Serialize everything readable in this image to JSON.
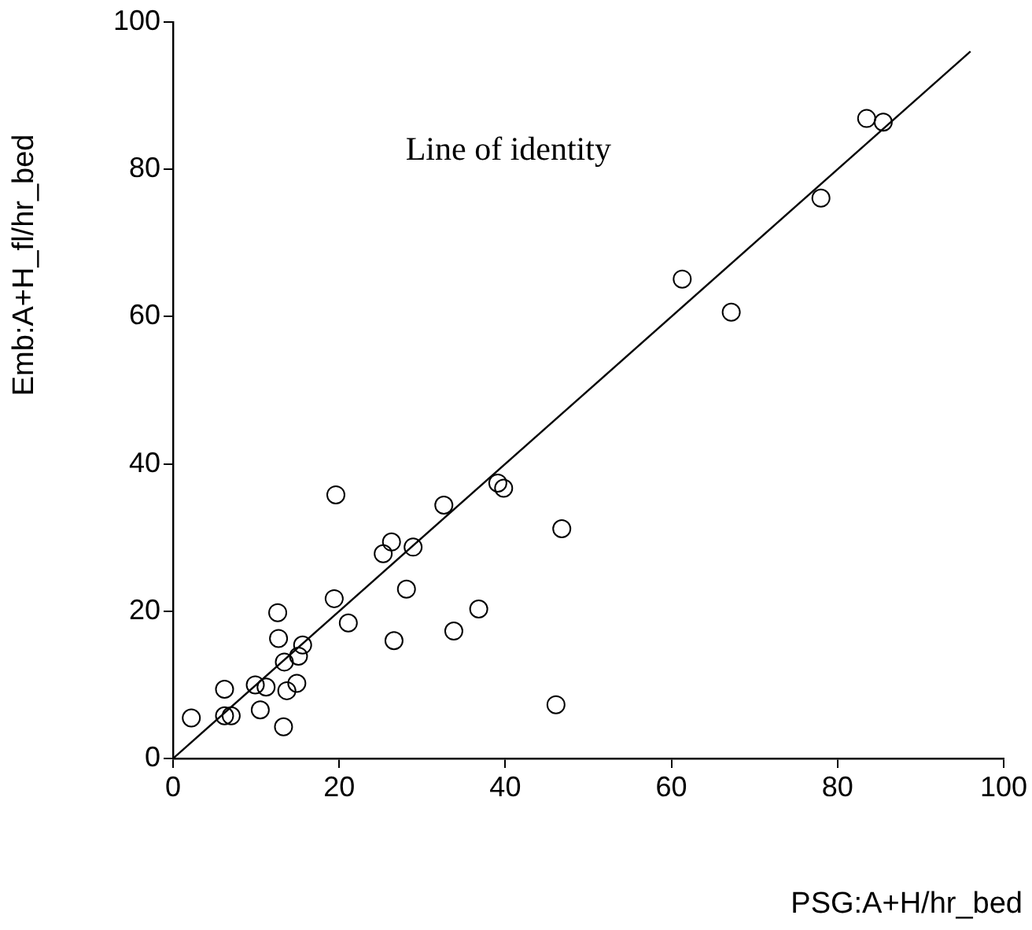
{
  "chart_data": {
    "type": "scatter",
    "xlabel": "PSG:A+H/hr_bed",
    "ylabel": "Emb:A+H_fl/hr_bed",
    "annotations": [
      "Line of identity"
    ],
    "xlim": [
      0,
      100
    ],
    "ylim": [
      0,
      100
    ],
    "xticks": [
      0,
      20,
      40,
      60,
      80,
      100
    ],
    "yticks": [
      0,
      20,
      40,
      60,
      80,
      100
    ],
    "grid": false,
    "legend": false,
    "marker": "circle",
    "series": [
      {
        "type": "scatter",
        "color": "#000000",
        "x": [
          2.2,
          6.2,
          7.0,
          6.2,
          9.9,
          11.2,
          10.5,
          12.6,
          12.7,
          13.4,
          13.3,
          13.7,
          14.9,
          15.1,
          15.6,
          19.6,
          19.4,
          21.1,
          25.3,
          26.3,
          28.9,
          26.6,
          28.1,
          32.6,
          33.8,
          36.8,
          39.1,
          39.8,
          46.8,
          46.1,
          61.3,
          67.2,
          78.0,
          83.5,
          85.5
        ],
        "values": [
          5.5,
          5.8,
          5.8,
          9.4,
          10.0,
          9.7,
          6.6,
          19.8,
          16.3,
          13.1,
          4.3,
          9.2,
          10.2,
          13.9,
          15.4,
          35.8,
          21.7,
          18.4,
          27.8,
          29.4,
          28.7,
          16.0,
          23.0,
          34.4,
          17.3,
          20.3,
          37.4,
          36.7,
          31.2,
          7.3,
          65.1,
          60.6,
          76.1,
          86.9,
          86.4
        ]
      },
      {
        "type": "line",
        "color": "#000000",
        "x": [
          0,
          96
        ],
        "values": [
          0,
          96
        ],
        "marker": "none",
        "line_style": "solid"
      }
    ]
  }
}
